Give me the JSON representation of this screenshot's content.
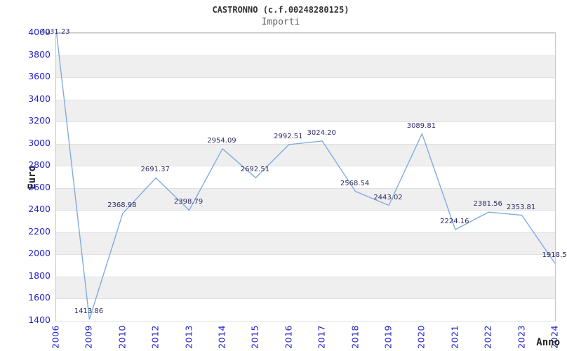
{
  "header": {
    "title": "CASTRONNO (c.f.00248280125)",
    "subtitle": "Importi"
  },
  "axes": {
    "y_label": "Euro",
    "x_label": "Anno",
    "y_ticks": [
      "4000",
      "3800",
      "3600",
      "3400",
      "3200",
      "3000",
      "2800",
      "2600",
      "2400",
      "2200",
      "2000",
      "1800",
      "1600",
      "1400"
    ]
  },
  "chart_data": {
    "type": "line",
    "title": "CASTRONNO (c.f.00248280125)",
    "subtitle": "Importi",
    "xlabel": "Anno",
    "ylabel": "Euro",
    "categories": [
      "2006",
      "2009",
      "2010",
      "2012",
      "2013",
      "2014",
      "2015",
      "2016",
      "2017",
      "2018",
      "2019",
      "2020",
      "2021",
      "2022",
      "2023",
      "2024"
    ],
    "series": [
      {
        "name": "Importi",
        "values": [
          4031.23,
          1413.86,
          2368.98,
          2691.37,
          2398.79,
          2954.09,
          2692.51,
          2992.51,
          3024.2,
          2568.54,
          2443.02,
          3089.81,
          2224.16,
          2381.56,
          2353.81,
          1918.5
        ]
      }
    ],
    "point_labels": [
      "4031.23",
      "1413.86",
      "2368.98",
      "2691.37",
      "2398.79",
      "2954.09",
      "2692.51",
      "2992.51",
      "3024.20",
      "2568.54",
      "2443.02",
      "3089.81",
      "2224.16",
      "2381.56",
      "2353.81",
      "1918.5"
    ],
    "ylim": [
      1400,
      4000
    ],
    "y_tick_step": 200,
    "grid": "horizontal gridlines with alternating gray/white bands",
    "legend": "none",
    "x_tick_rotation": -90,
    "markers": "none"
  },
  "colors": {
    "background": "#ffffff",
    "line": "#82abdf",
    "tick_text": "#2222cc",
    "point_label_text": "#2b2b66",
    "band_gray": "#efefef",
    "band_white": "#ffffff",
    "gridline": "#e0e0e0",
    "plot_border": "#c8c8c8",
    "title_text": "#333333",
    "subtitle_text": "#666666",
    "axis_title_text": "#222222"
  }
}
